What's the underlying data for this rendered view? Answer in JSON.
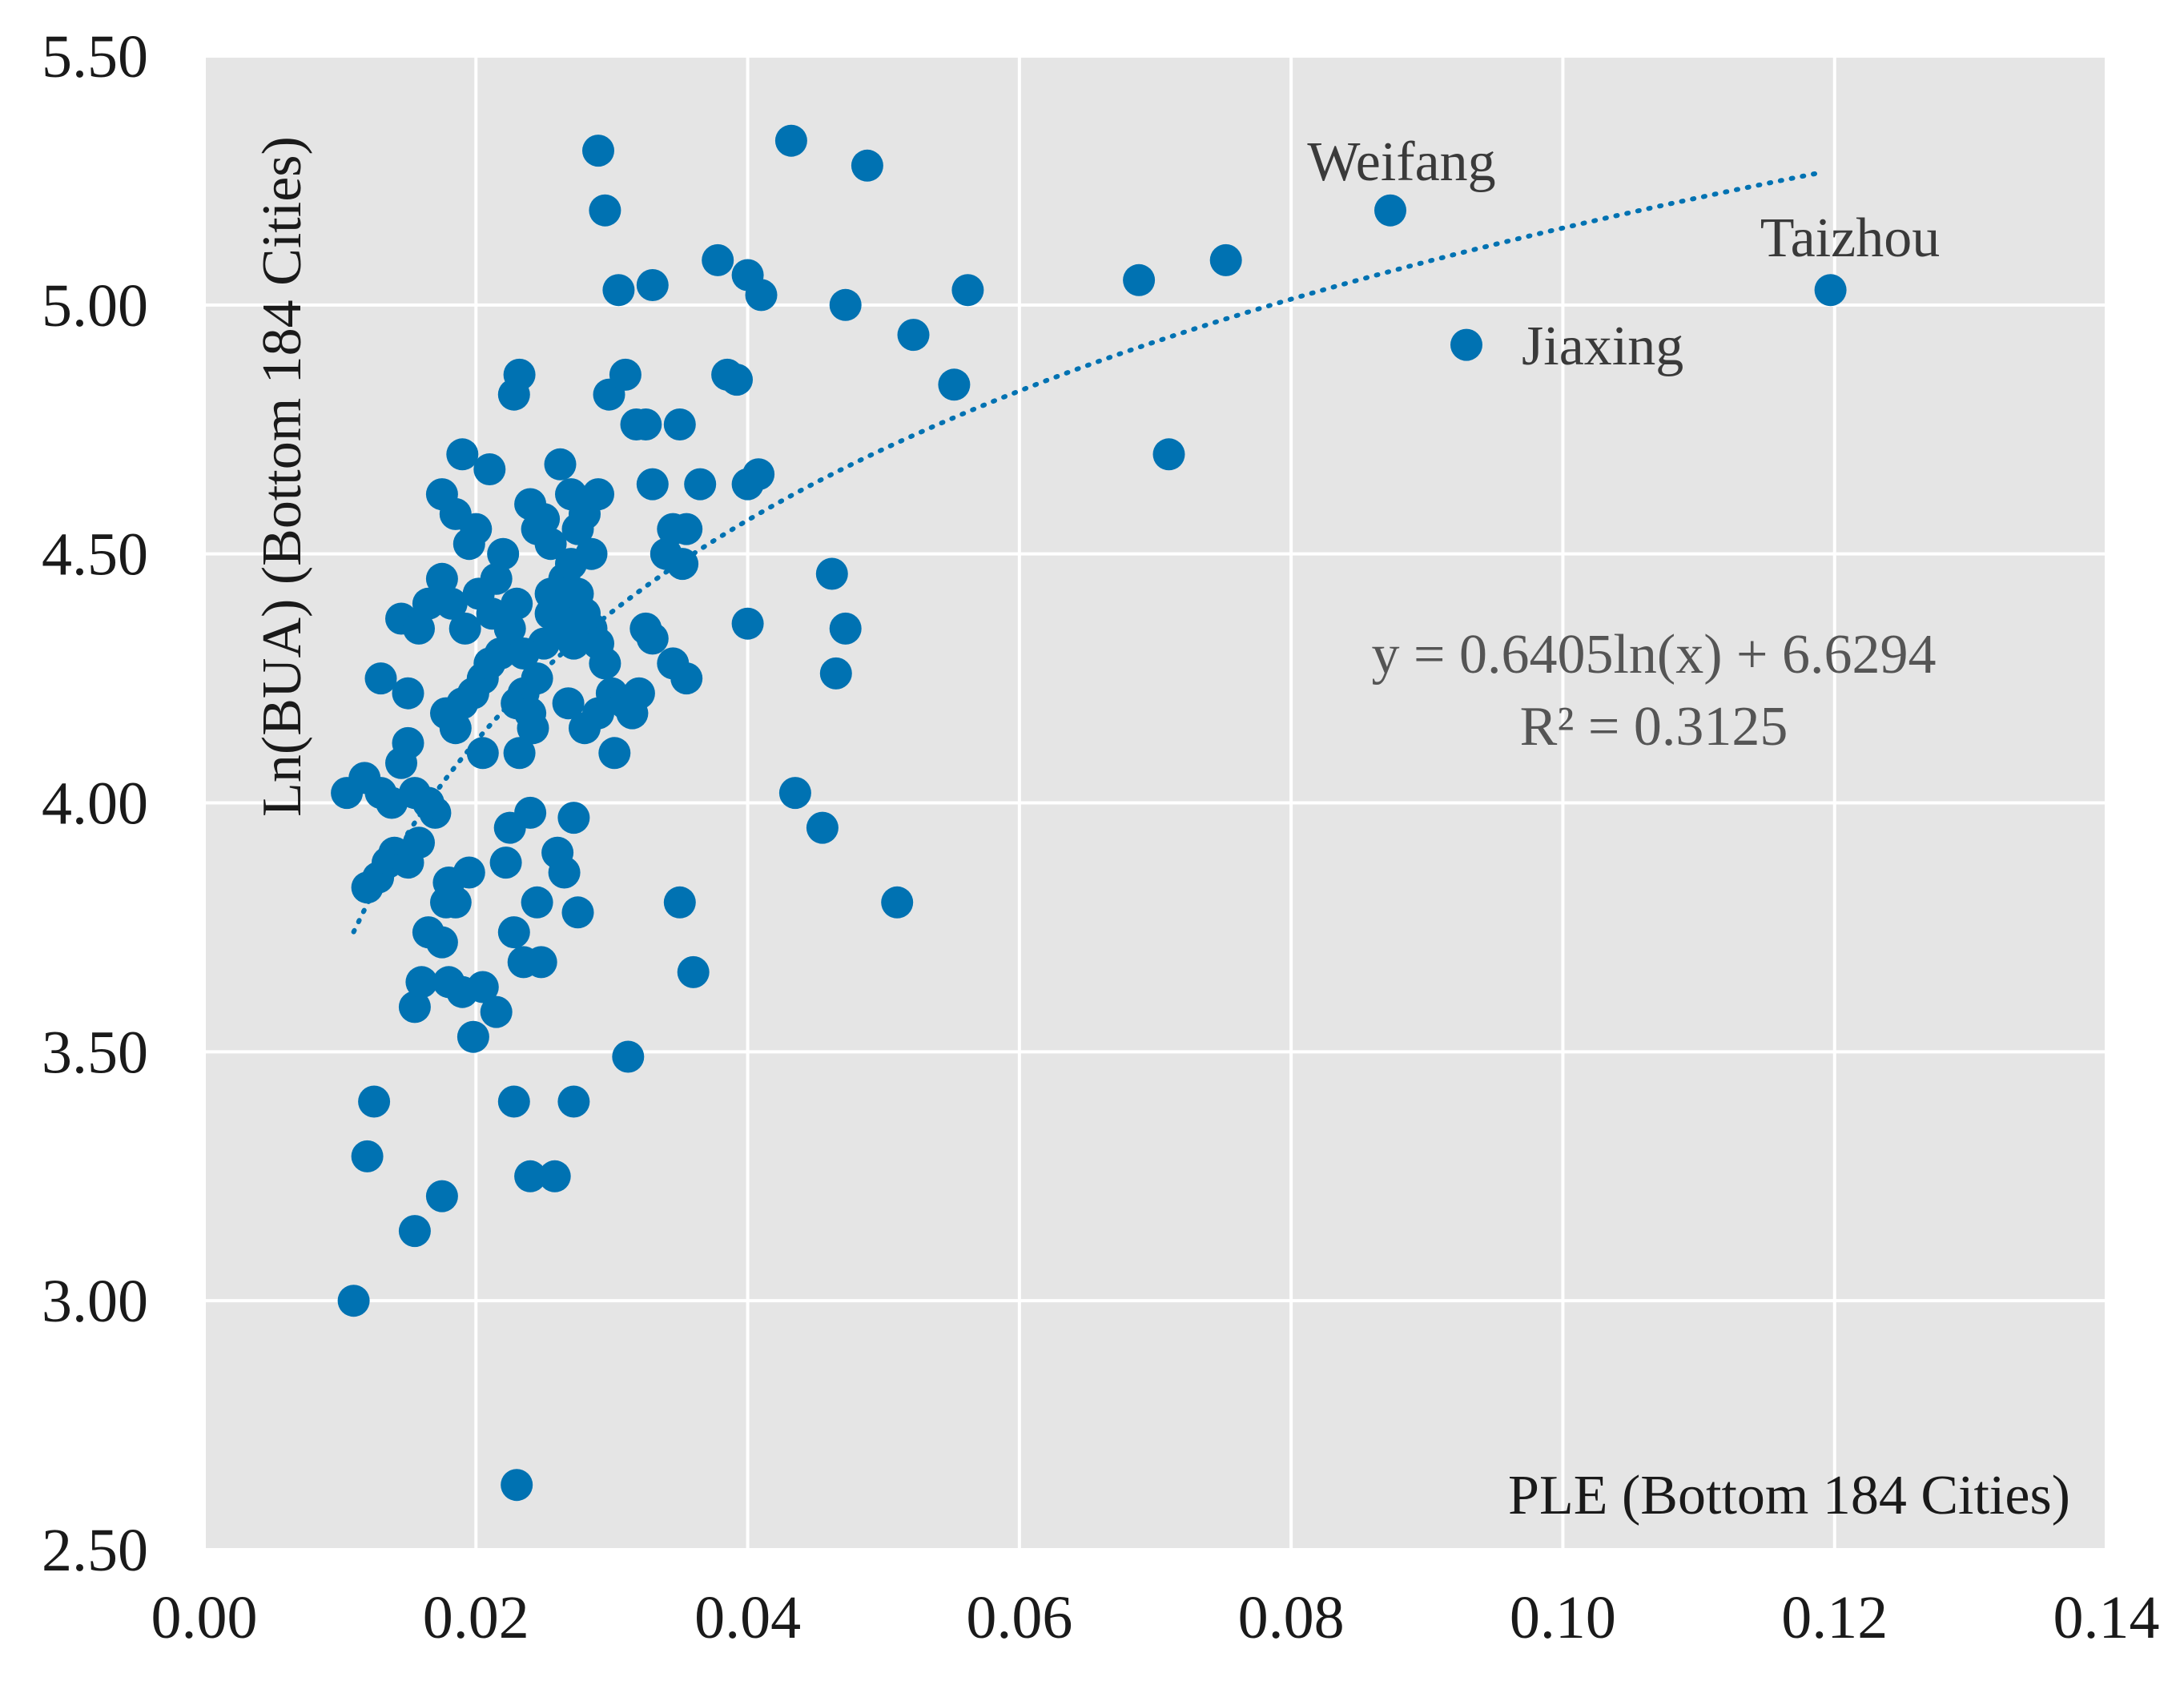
{
  "chart_data": {
    "type": "scatter",
    "title": "",
    "xlabel": "PLE (Bottom 184 Cities)",
    "ylabel": "Ln(BUA)  (Bottom 184 Cities)",
    "xlim": [
      0,
      0.14
    ],
    "ylim": [
      2.5,
      5.5
    ],
    "x_ticks": [
      "0.00",
      "0.02",
      "0.04",
      "0.06",
      "0.08",
      "0.10",
      "0.12",
      "0.14"
    ],
    "y_ticks": [
      "2.50",
      "3.00",
      "3.50",
      "4.00",
      "4.50",
      "5.00",
      "5.50"
    ],
    "x_tick_values": [
      0,
      0.02,
      0.04,
      0.06,
      0.08,
      0.1,
      0.12,
      0.14
    ],
    "y_tick_values": [
      2.5,
      3.0,
      3.5,
      4.0,
      4.5,
      5.0,
      5.5
    ],
    "grid": true,
    "background_color": "#e5e5e5",
    "marker_color": "#0072b2",
    "trendline": {
      "type": "logarithmic",
      "a": 0.6405,
      "b": 6.6294,
      "x_range": [
        0.011,
        0.119
      ],
      "equation_text": "y = 0.6405ln(x) + 6.6294",
      "r2_text": "R² = 0.3125"
    },
    "annotations": [
      {
        "text": "Weifang",
        "x": 0.0873,
        "y": 5.19
      },
      {
        "text": "Taizhou",
        "x": 0.1197,
        "y": 5.03
      },
      {
        "text": "Jiaxing",
        "x": 0.0929,
        "y": 4.92
      }
    ],
    "points": [
      [
        0.011,
        3.0
      ],
      [
        0.023,
        2.63
      ],
      [
        0.012,
        3.29
      ],
      [
        0.0125,
        3.4
      ],
      [
        0.0155,
        3.14
      ],
      [
        0.0175,
        3.21
      ],
      [
        0.0228,
        3.4
      ],
      [
        0.024,
        3.25
      ],
      [
        0.0258,
        3.25
      ],
      [
        0.0272,
        3.4
      ],
      [
        0.0312,
        3.49
      ],
      [
        0.036,
        3.66
      ],
      [
        0.035,
        3.8
      ],
      [
        0.051,
        3.8
      ],
      [
        0.0155,
        3.59
      ],
      [
        0.016,
        3.64
      ],
      [
        0.018,
        3.64
      ],
      [
        0.019,
        3.62
      ],
      [
        0.0198,
        3.53
      ],
      [
        0.0205,
        3.63
      ],
      [
        0.0215,
        3.58
      ],
      [
        0.0165,
        3.74
      ],
      [
        0.0175,
        3.72
      ],
      [
        0.0178,
        3.8
      ],
      [
        0.0185,
        3.8
      ],
      [
        0.0195,
        3.86
      ],
      [
        0.0228,
        3.74
      ],
      [
        0.0235,
        3.68
      ],
      [
        0.0248,
        3.68
      ],
      [
        0.0245,
        3.8
      ],
      [
        0.0275,
        3.78
      ],
      [
        0.012,
        3.83
      ],
      [
        0.0128,
        3.85
      ],
      [
        0.0135,
        3.88
      ],
      [
        0.014,
        3.9
      ],
      [
        0.015,
        3.88
      ],
      [
        0.0158,
        3.92
      ],
      [
        0.017,
        3.98
      ],
      [
        0.018,
        3.84
      ],
      [
        0.0225,
        3.95
      ],
      [
        0.024,
        3.98
      ],
      [
        0.0222,
        3.88
      ],
      [
        0.026,
        3.9
      ],
      [
        0.0265,
        3.86
      ],
      [
        0.0272,
        3.97
      ],
      [
        0.0105,
        4.02
      ],
      [
        0.0118,
        4.05
      ],
      [
        0.013,
        4.02
      ],
      [
        0.0138,
        4.0
      ],
      [
        0.0145,
        4.08
      ],
      [
        0.015,
        4.12
      ],
      [
        0.0155,
        4.02
      ],
      [
        0.0165,
        4.0
      ],
      [
        0.013,
        4.25
      ],
      [
        0.015,
        4.22
      ],
      [
        0.0145,
        4.37
      ],
      [
        0.0158,
        4.35
      ],
      [
        0.0165,
        4.4
      ],
      [
        0.0175,
        4.45
      ],
      [
        0.0178,
        4.18
      ],
      [
        0.0185,
        4.15
      ],
      [
        0.019,
        4.2
      ],
      [
        0.0198,
        4.22
      ],
      [
        0.0205,
        4.25
      ],
      [
        0.021,
        4.28
      ],
      [
        0.0218,
        4.3
      ],
      [
        0.0225,
        4.35
      ],
      [
        0.023,
        4.2
      ],
      [
        0.0235,
        4.22
      ],
      [
        0.024,
        4.18
      ],
      [
        0.0245,
        4.25
      ],
      [
        0.025,
        4.32
      ],
      [
        0.0255,
        4.38
      ],
      [
        0.026,
        4.4
      ],
      [
        0.0265,
        4.45
      ],
      [
        0.027,
        4.48
      ],
      [
        0.0275,
        4.42
      ],
      [
        0.028,
        4.38
      ],
      [
        0.0285,
        4.35
      ],
      [
        0.029,
        4.32
      ],
      [
        0.0295,
        4.28
      ],
      [
        0.03,
        4.22
      ],
      [
        0.031,
        4.2
      ],
      [
        0.0315,
        4.18
      ],
      [
        0.032,
        4.22
      ],
      [
        0.033,
        4.33
      ],
      [
        0.0345,
        4.28
      ],
      [
        0.0355,
        4.25
      ],
      [
        0.0325,
        4.35
      ],
      [
        0.029,
        4.18
      ],
      [
        0.0302,
        4.1
      ],
      [
        0.0205,
        4.1
      ],
      [
        0.0232,
        4.1
      ],
      [
        0.0242,
        4.15
      ],
      [
        0.0268,
        4.2
      ],
      [
        0.028,
        4.15
      ],
      [
        0.0175,
        4.62
      ],
      [
        0.0185,
        4.58
      ],
      [
        0.019,
        4.7
      ],
      [
        0.0195,
        4.52
      ],
      [
        0.02,
        4.55
      ],
      [
        0.021,
        4.67
      ],
      [
        0.0215,
        4.45
      ],
      [
        0.022,
        4.5
      ],
      [
        0.023,
        4.4
      ],
      [
        0.024,
        4.6
      ],
      [
        0.0245,
        4.55
      ],
      [
        0.025,
        4.57
      ],
      [
        0.0255,
        4.52
      ],
      [
        0.0262,
        4.68
      ],
      [
        0.027,
        4.62
      ],
      [
        0.0275,
        4.55
      ],
      [
        0.028,
        4.58
      ],
      [
        0.0285,
        4.5
      ],
      [
        0.029,
        4.62
      ],
      [
        0.0255,
        4.42
      ],
      [
        0.0265,
        4.35
      ],
      [
        0.0272,
        4.32
      ],
      [
        0.0182,
        4.4
      ],
      [
        0.0192,
        4.35
      ],
      [
        0.0202,
        4.42
      ],
      [
        0.0212,
        4.38
      ],
      [
        0.0235,
        4.3
      ],
      [
        0.0228,
        4.82
      ],
      [
        0.0232,
        4.86
      ],
      [
        0.0298,
        4.82
      ],
      [
        0.031,
        4.86
      ],
      [
        0.0318,
        4.76
      ],
      [
        0.0325,
        4.76
      ],
      [
        0.035,
        4.76
      ],
      [
        0.033,
        4.64
      ],
      [
        0.0345,
        4.55
      ],
      [
        0.0355,
        4.55
      ],
      [
        0.0365,
        4.64
      ],
      [
        0.034,
        4.5
      ],
      [
        0.0352,
        4.48
      ],
      [
        0.04,
        4.36
      ],
      [
        0.04,
        4.64
      ],
      [
        0.0408,
        4.66
      ],
      [
        0.029,
        5.31
      ],
      [
        0.0295,
        5.19
      ],
      [
        0.0305,
        5.03
      ],
      [
        0.033,
        5.04
      ],
      [
        0.0378,
        5.09
      ],
      [
        0.0385,
        4.86
      ],
      [
        0.0392,
        4.85
      ],
      [
        0.04,
        5.06
      ],
      [
        0.041,
        5.02
      ],
      [
        0.0432,
        5.33
      ],
      [
        0.0472,
        5.0
      ],
      [
        0.0488,
        5.28
      ],
      [
        0.0522,
        4.94
      ],
      [
        0.0552,
        4.84
      ],
      [
        0.0562,
        5.03
      ],
      [
        0.0435,
        4.02
      ],
      [
        0.0455,
        3.95
      ],
      [
        0.0462,
        4.46
      ],
      [
        0.0465,
        4.26
      ],
      [
        0.0472,
        4.35
      ],
      [
        0.0688,
        5.05
      ],
      [
        0.071,
        4.7
      ],
      [
        0.0752,
        5.09
      ],
      [
        0.0873,
        5.19
      ],
      [
        0.0929,
        4.92
      ],
      [
        0.1197,
        5.03
      ]
    ]
  }
}
